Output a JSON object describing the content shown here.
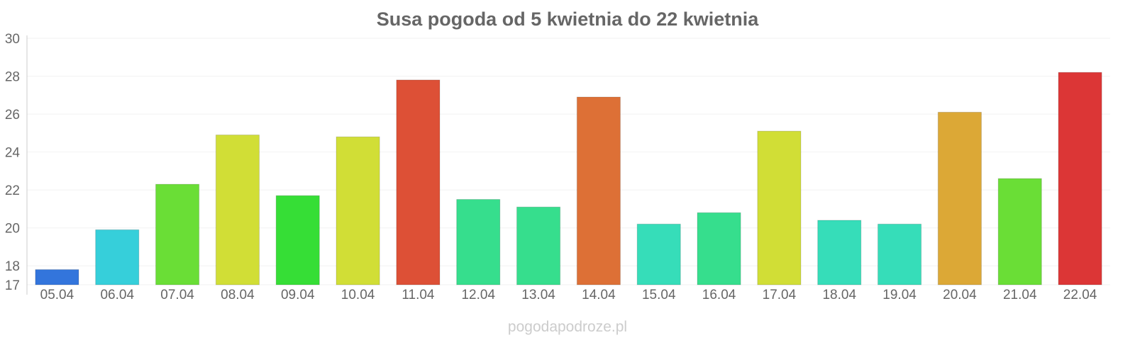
{
  "chart_data": {
    "type": "bar",
    "title": "Susa pogoda od 5 kwietnia do 22 kwietnia",
    "xlabel": "",
    "ylabel": "",
    "ylim": [
      17,
      30
    ],
    "yticks": [
      17,
      18,
      20,
      22,
      24,
      26,
      28,
      30
    ],
    "grid": true,
    "categories": [
      "05.04",
      "06.04",
      "07.04",
      "08.04",
      "09.04",
      "10.04",
      "11.04",
      "12.04",
      "13.04",
      "14.04",
      "15.04",
      "16.04",
      "17.04",
      "18.04",
      "19.04",
      "20.04",
      "21.04",
      "22.04"
    ],
    "values": [
      17.8,
      19.9,
      22.3,
      24.9,
      21.7,
      24.8,
      27.8,
      21.5,
      21.1,
      26.9,
      20.2,
      20.8,
      25.1,
      20.4,
      20.2,
      26.1,
      22.6,
      28.2
    ],
    "colors": [
      "#3375dc",
      "#36cfda",
      "#6ade36",
      "#d1de36",
      "#36de36",
      "#d1de36",
      "#dd5036",
      "#36de8d",
      "#36de8d",
      "#dd7036",
      "#36ddb9",
      "#36de8d",
      "#d1de36",
      "#36ddb9",
      "#36ddb9",
      "#dca836",
      "#6ade36",
      "#dc3636"
    ]
  },
  "watermark": "pogodapodroze.pl"
}
